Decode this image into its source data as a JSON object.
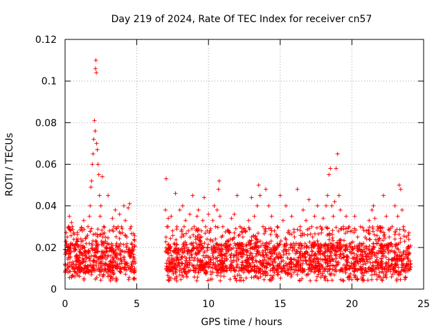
{
  "chart_data": {
    "type": "scatter",
    "title": "Day 219 of 2024, Rate Of TEC Index for receiver cn57",
    "xlabel": "GPS time / hours",
    "ylabel": "ROTI / TECUs",
    "xlim": [
      0,
      25
    ],
    "ylim": [
      0,
      0.12
    ],
    "xticks": [
      0,
      5,
      10,
      15,
      20,
      25
    ],
    "xtick_labels": [
      "0",
      "5",
      "10",
      "15",
      "20",
      "25"
    ],
    "yticks": [
      0,
      0.02,
      0.04,
      0.06,
      0.08,
      0.1,
      0.12
    ],
    "ytick_labels": [
      "0",
      "0.02",
      "0.04",
      "0.06",
      "0.08",
      "0.1",
      "0.12"
    ],
    "grid": true,
    "marker": "+",
    "marker_color": "#ff0000",
    "series": [
      {
        "name": "ROTI",
        "data_gap_hours": [
          4.9,
          7.0
        ],
        "points": [
          [
            0.0,
            0.012
          ],
          [
            0.1,
            0.018
          ],
          [
            0.15,
            0.025
          ],
          [
            0.2,
            0.008
          ],
          [
            0.25,
            0.03
          ],
          [
            0.3,
            0.035
          ],
          [
            0.35,
            0.015
          ],
          [
            0.4,
            0.022
          ],
          [
            0.45,
            0.032
          ],
          [
            0.5,
            0.03
          ],
          [
            0.55,
            0.01
          ],
          [
            0.6,
            0.027
          ],
          [
            0.7,
            0.019
          ],
          [
            0.8,
            0.014
          ],
          [
            0.9,
            0.024
          ],
          [
            1.0,
            0.016
          ],
          [
            1.1,
            0.021
          ],
          [
            1.2,
            0.028
          ],
          [
            1.3,
            0.033
          ],
          [
            1.4,
            0.018
          ],
          [
            1.5,
            0.025
          ],
          [
            1.6,
            0.03
          ],
          [
            1.7,
            0.035
          ],
          [
            1.75,
            0.04
          ],
          [
            1.8,
            0.049
          ],
          [
            1.85,
            0.052
          ],
          [
            1.9,
            0.06
          ],
          [
            1.95,
            0.065
          ],
          [
            2.0,
            0.072
          ],
          [
            2.05,
            0.081
          ],
          [
            2.1,
            0.076
          ],
          [
            2.12,
            0.106
          ],
          [
            2.15,
            0.11
          ],
          [
            2.18,
            0.104
          ],
          [
            2.2,
            0.07
          ],
          [
            2.25,
            0.067
          ],
          [
            2.3,
            0.06
          ],
          [
            2.35,
            0.055
          ],
          [
            2.4,
            0.045
          ],
          [
            2.45,
            0.035
          ],
          [
            2.5,
            0.04
          ],
          [
            2.6,
            0.054
          ],
          [
            2.7,
            0.03
          ],
          [
            2.8,
            0.025
          ],
          [
            2.9,
            0.018
          ],
          [
            3.0,
            0.045
          ],
          [
            3.1,
            0.028
          ],
          [
            3.2,
            0.02
          ],
          [
            3.3,
            0.034
          ],
          [
            3.4,
            0.015
          ],
          [
            3.5,
            0.038
          ],
          [
            3.6,
            0.022
          ],
          [
            3.7,
            0.03
          ],
          [
            3.8,
            0.036
          ],
          [
            3.9,
            0.018
          ],
          [
            4.0,
            0.027
          ],
          [
            4.1,
            0.04
          ],
          [
            4.2,
            0.033
          ],
          [
            4.3,
            0.025
          ],
          [
            4.4,
            0.039
          ],
          [
            4.5,
            0.041
          ],
          [
            4.6,
            0.03
          ],
          [
            4.7,
            0.02
          ],
          [
            4.8,
            0.015
          ],
          [
            4.85,
            0.01
          ],
          [
            7.0,
            0.038
          ],
          [
            7.05,
            0.053
          ],
          [
            7.1,
            0.03
          ],
          [
            7.2,
            0.034
          ],
          [
            7.3,
            0.02
          ],
          [
            7.4,
            0.035
          ],
          [
            7.5,
            0.028
          ],
          [
            7.6,
            0.022
          ],
          [
            7.7,
            0.046
          ],
          [
            7.8,
            0.03
          ],
          [
            7.9,
            0.018
          ],
          [
            8.0,
            0.038
          ],
          [
            8.1,
            0.025
          ],
          [
            8.2,
            0.04
          ],
          [
            8.3,
            0.03
          ],
          [
            8.4,
            0.033
          ],
          [
            8.5,
            0.02
          ],
          [
            8.6,
            0.028
          ],
          [
            8.7,
            0.036
          ],
          [
            8.8,
            0.022
          ],
          [
            8.9,
            0.045
          ],
          [
            9.0,
            0.03
          ],
          [
            9.1,
            0.025
          ],
          [
            9.2,
            0.035
          ],
          [
            9.3,
            0.038
          ],
          [
            9.4,
            0.02
          ],
          [
            9.5,
            0.028
          ],
          [
            9.6,
            0.033
          ],
          [
            9.7,
            0.044
          ],
          [
            9.8,
            0.03
          ],
          [
            9.9,
            0.024
          ],
          [
            10.0,
            0.036
          ],
          [
            10.1,
            0.028
          ],
          [
            10.2,
            0.02
          ],
          [
            10.3,
            0.033
          ],
          [
            10.4,
            0.04
          ],
          [
            10.5,
            0.03
          ],
          [
            10.6,
            0.038
          ],
          [
            10.7,
            0.048
          ],
          [
            10.75,
            0.052
          ],
          [
            10.8,
            0.035
          ],
          [
            10.9,
            0.025
          ],
          [
            11.0,
            0.03
          ],
          [
            11.2,
            0.022
          ],
          [
            11.4,
            0.028
          ],
          [
            11.6,
            0.034
          ],
          [
            11.8,
            0.036
          ],
          [
            12.0,
            0.045
          ],
          [
            12.2,
            0.03
          ],
          [
            12.4,
            0.025
          ],
          [
            12.6,
            0.028
          ],
          [
            12.8,
            0.033
          ],
          [
            13.0,
            0.044
          ],
          [
            13.2,
            0.035
          ],
          [
            13.4,
            0.04
          ],
          [
            13.5,
            0.05
          ],
          [
            13.6,
            0.045
          ],
          [
            13.8,
            0.03
          ],
          [
            14.0,
            0.048
          ],
          [
            14.2,
            0.04
          ],
          [
            14.4,
            0.035
          ],
          [
            14.6,
            0.028
          ],
          [
            14.8,
            0.03
          ],
          [
            15.0,
            0.045
          ],
          [
            15.2,
            0.033
          ],
          [
            15.4,
            0.04
          ],
          [
            15.6,
            0.028
          ],
          [
            15.8,
            0.035
          ],
          [
            16.0,
            0.025
          ],
          [
            16.2,
            0.048
          ],
          [
            16.4,
            0.03
          ],
          [
            16.6,
            0.038
          ],
          [
            16.8,
            0.033
          ],
          [
            17.0,
            0.043
          ],
          [
            17.2,
            0.03
          ],
          [
            17.4,
            0.035
          ],
          [
            17.6,
            0.04
          ],
          [
            17.8,
            0.03
          ],
          [
            18.0,
            0.034
          ],
          [
            18.2,
            0.04
          ],
          [
            18.3,
            0.045
          ],
          [
            18.4,
            0.055
          ],
          [
            18.5,
            0.058
          ],
          [
            18.6,
            0.04
          ],
          [
            18.7,
            0.035
          ],
          [
            18.8,
            0.042
          ],
          [
            18.9,
            0.058
          ],
          [
            19.0,
            0.065
          ],
          [
            19.1,
            0.045
          ],
          [
            19.2,
            0.038
          ],
          [
            19.4,
            0.03
          ],
          [
            19.6,
            0.035
          ],
          [
            19.8,
            0.03
          ],
          [
            20.0,
            0.028
          ],
          [
            20.2,
            0.035
          ],
          [
            20.4,
            0.025
          ],
          [
            20.6,
            0.03
          ],
          [
            20.8,
            0.022
          ],
          [
            21.0,
            0.028
          ],
          [
            21.2,
            0.033
          ],
          [
            21.4,
            0.038
          ],
          [
            21.5,
            0.04
          ],
          [
            21.6,
            0.034
          ],
          [
            21.8,
            0.03
          ],
          [
            22.0,
            0.028
          ],
          [
            22.2,
            0.045
          ],
          [
            22.4,
            0.035
          ],
          [
            22.6,
            0.025
          ],
          [
            22.8,
            0.03
          ],
          [
            23.0,
            0.04
          ],
          [
            23.2,
            0.035
          ],
          [
            23.3,
            0.05
          ],
          [
            23.4,
            0.048
          ],
          [
            23.5,
            0.038
          ],
          [
            23.6,
            0.03
          ],
          [
            23.8,
            0.025
          ],
          [
            24.0,
            0.02
          ]
        ],
        "baseline_band": [
          0.008,
          0.022
        ]
      }
    ]
  }
}
